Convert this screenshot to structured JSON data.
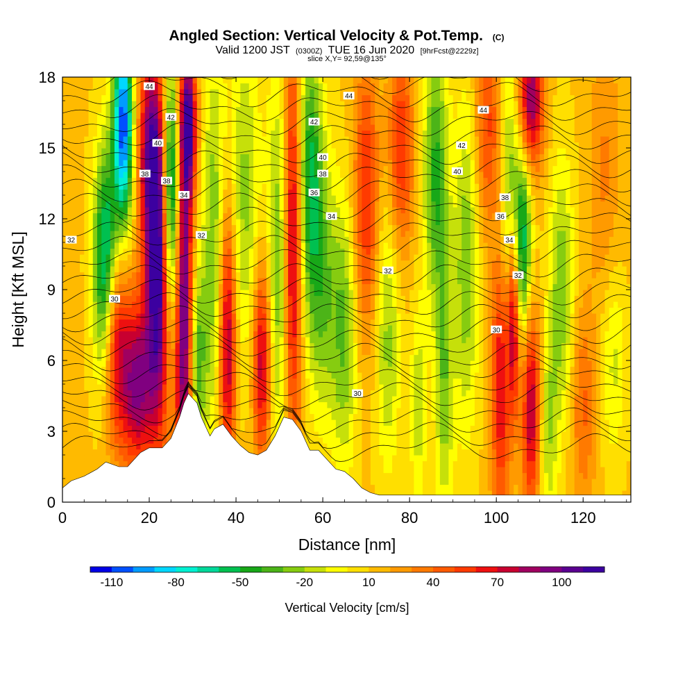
{
  "chart_data": {
    "type": "heatmap",
    "title": {
      "main": "Angled Section: Vertical Velocity & Pot.Temp.",
      "copyright": "(C)",
      "valid_prefix": "Valid 1200 JST",
      "utc": "(0300Z)",
      "valid_date": "TUE 16 Jun 2020",
      "forecast": "[9hrFcst@2229z]",
      "slice": "slice X,Y= 92,59@135°"
    },
    "xlabel": "Distance [nm]",
    "ylabel": "Height [Kft MSL]",
    "xlim": [
      0,
      131
    ],
    "ylim": [
      0,
      18
    ],
    "x_ticks": [
      0,
      20,
      40,
      60,
      80,
      100,
      120
    ],
    "y_ticks": [
      0,
      3,
      6,
      9,
      12,
      15,
      18
    ],
    "colorbar": {
      "label": "Vertical Velocity [cm/s]",
      "min": -120,
      "max": 120,
      "step": 10,
      "tick_values": [
        -110,
        -80,
        -50,
        -20,
        10,
        40,
        70,
        100
      ],
      "tick_labels": [
        "-110",
        "-80",
        "-50",
        "-20",
        "10",
        "40",
        "70",
        "100"
      ],
      "colors": [
        "#0000e6",
        "#0050ff",
        "#009bff",
        "#00d7ff",
        "#00f0d2",
        "#00d89a",
        "#00c050",
        "#18a818",
        "#4cb418",
        "#86cc10",
        "#c6e00a",
        "#ffff00",
        "#ffdf00",
        "#ffba00",
        "#ff9a00",
        "#ff7a00",
        "#ff5a00",
        "#ff3a00",
        "#ee1010",
        "#c80030",
        "#a00060",
        "#800080",
        "#5a0090",
        "#3c00a0"
      ]
    },
    "terrain_kft": [
      [
        0,
        0.6
      ],
      [
        2,
        0.9
      ],
      [
        5,
        1.1
      ],
      [
        8,
        1.4
      ],
      [
        10,
        1.7
      ],
      [
        13,
        1.5
      ],
      [
        15,
        1.5
      ],
      [
        18,
        2.1
      ],
      [
        20,
        2.3
      ],
      [
        23,
        2.3
      ],
      [
        25,
        2.7
      ],
      [
        27,
        3.6
      ],
      [
        28,
        4.2
      ],
      [
        29,
        4.6
      ],
      [
        31,
        4.2
      ],
      [
        32,
        3.6
      ],
      [
        33,
        3.2
      ],
      [
        34,
        2.8
      ],
      [
        35,
        3.1
      ],
      [
        37,
        3.3
      ],
      [
        39,
        2.8
      ],
      [
        41,
        2.4
      ],
      [
        43,
        2.1
      ],
      [
        45,
        2.0
      ],
      [
        47,
        2.2
      ],
      [
        49,
        2.8
      ],
      [
        51,
        3.6
      ],
      [
        53,
        3.5
      ],
      [
        55,
        3.0
      ],
      [
        57,
        2.2
      ],
      [
        59,
        2.2
      ],
      [
        61,
        1.8
      ],
      [
        63,
        1.4
      ],
      [
        65,
        1.3
      ],
      [
        67,
        1.0
      ],
      [
        69,
        0.6
      ],
      [
        71,
        0.4
      ],
      [
        73,
        0.3
      ],
      [
        131,
        0.3
      ]
    ],
    "velocity_features": [
      {
        "x": 10,
        "z": 10,
        "sx": 2,
        "sz": 3.5,
        "v": -90
      },
      {
        "x": 14,
        "z": 16,
        "sx": 1.6,
        "sz": 3,
        "v": -120
      },
      {
        "x": 12,
        "z": 7,
        "sx": 2,
        "sz": 3,
        "v": 70
      },
      {
        "x": 17,
        "z": 5,
        "sx": 2.5,
        "sz": 2.5,
        "v": 80
      },
      {
        "x": 22,
        "z": 10,
        "sx": 2,
        "sz": 5,
        "v": 115
      },
      {
        "x": 20,
        "z": 15,
        "sx": 2,
        "sz": 3,
        "v": 60
      },
      {
        "x": 25,
        "z": 13,
        "sx": 1.5,
        "sz": 4,
        "v": -100
      },
      {
        "x": 28,
        "z": 8,
        "sx": 1.5,
        "sz": 6,
        "v": 100
      },
      {
        "x": 29,
        "z": 16,
        "sx": 1.3,
        "sz": 2,
        "v": 90
      },
      {
        "x": 31,
        "z": 6,
        "sx": 1.5,
        "sz": 3,
        "v": -50
      },
      {
        "x": 35,
        "z": 11,
        "sx": 2,
        "sz": 6,
        "v": -40
      },
      {
        "x": 38,
        "z": 7,
        "sx": 1.4,
        "sz": 4,
        "v": 80
      },
      {
        "x": 42,
        "z": 13,
        "sx": 2.5,
        "sz": 5,
        "v": -35
      },
      {
        "x": 46,
        "z": 6,
        "sx": 1.5,
        "sz": 3,
        "v": 70
      },
      {
        "x": 50,
        "z": 10,
        "sx": 2,
        "sz": 6,
        "v": -45
      },
      {
        "x": 53,
        "z": 11,
        "sx": 1.5,
        "sz": 6,
        "v": 80
      },
      {
        "x": 57,
        "z": 14,
        "sx": 2,
        "sz": 4,
        "v": -60
      },
      {
        "x": 60,
        "z": 9,
        "sx": 2.5,
        "sz": 4,
        "v": -40
      },
      {
        "x": 65,
        "z": 7,
        "sx": 2,
        "sz": 4,
        "v": -40
      },
      {
        "x": 70,
        "z": 13,
        "sx": 2,
        "sz": 4,
        "v": 50
      },
      {
        "x": 75,
        "z": 7,
        "sx": 2,
        "sz": 4,
        "v": -35
      },
      {
        "x": 78,
        "z": 15,
        "sx": 2,
        "sz": 3,
        "v": 50
      },
      {
        "x": 82,
        "z": 4,
        "sx": 1.3,
        "sz": 3,
        "v": -30
      },
      {
        "x": 86,
        "z": 14,
        "sx": 2,
        "sz": 4,
        "v": -55
      },
      {
        "x": 88,
        "z": 5,
        "sx": 1.5,
        "sz": 4,
        "v": -40
      },
      {
        "x": 93,
        "z": 10,
        "sx": 2,
        "sz": 5,
        "v": -40
      },
      {
        "x": 98,
        "z": 16,
        "sx": 2,
        "sz": 3,
        "v": 40
      },
      {
        "x": 101,
        "z": 5,
        "sx": 1.5,
        "sz": 4,
        "v": 60
      },
      {
        "x": 103,
        "z": 13,
        "sx": 1.5,
        "sz": 4,
        "v": -40
      },
      {
        "x": 104,
        "z": 8,
        "sx": 1,
        "sz": 3,
        "v": 80
      },
      {
        "x": 106,
        "z": 11,
        "sx": 1.5,
        "sz": 3,
        "v": -70
      },
      {
        "x": 108,
        "z": 17,
        "sx": 2,
        "sz": 2,
        "v": 80
      },
      {
        "x": 108,
        "z": 4,
        "sx": 1.5,
        "sz": 3,
        "v": 70
      },
      {
        "x": 112,
        "z": 3,
        "sx": 1.5,
        "sz": 3,
        "v": -30
      },
      {
        "x": 115,
        "z": 9,
        "sx": 2,
        "sz": 4,
        "v": -40
      },
      {
        "x": 120,
        "z": 4,
        "sx": 2,
        "sz": 3,
        "v": 30
      },
      {
        "x": 125,
        "z": 14,
        "sx": 2.5,
        "sz": 4,
        "v": 20
      },
      {
        "x": 127,
        "z": 6,
        "sx": 2,
        "sz": 3,
        "v": -25
      }
    ],
    "isentrope_labels": [
      {
        "text": "44",
        "x": 20,
        "z": 17.6
      },
      {
        "text": "42",
        "x": 25,
        "z": 16.3
      },
      {
        "text": "40",
        "x": 22,
        "z": 15.2
      },
      {
        "text": "38",
        "x": 19,
        "z": 13.9
      },
      {
        "text": "38",
        "x": 24,
        "z": 13.6
      },
      {
        "text": "34",
        "x": 28,
        "z": 13.0
      },
      {
        "text": "32",
        "x": 32,
        "z": 11.3
      },
      {
        "text": "32",
        "x": 2,
        "z": 11.1
      },
      {
        "text": "30",
        "x": 12,
        "z": 8.6
      },
      {
        "text": "44",
        "x": 66,
        "z": 17.2
      },
      {
        "text": "42",
        "x": 58,
        "z": 16.1
      },
      {
        "text": "40",
        "x": 60,
        "z": 14.6
      },
      {
        "text": "38",
        "x": 60,
        "z": 13.9
      },
      {
        "text": "36",
        "x": 58,
        "z": 13.1
      },
      {
        "text": "34",
        "x": 62,
        "z": 12.1
      },
      {
        "text": "32",
        "x": 75,
        "z": 9.8
      },
      {
        "text": "30",
        "x": 68,
        "z": 4.6
      },
      {
        "text": "44",
        "x": 97,
        "z": 16.6
      },
      {
        "text": "42",
        "x": 92,
        "z": 15.1
      },
      {
        "text": "40",
        "x": 91,
        "z": 14.0
      },
      {
        "text": "38",
        "x": 102,
        "z": 12.9
      },
      {
        "text": "36",
        "x": 101,
        "z": 12.1
      },
      {
        "text": "34",
        "x": 103,
        "z": 11.1
      },
      {
        "text": "32",
        "x": 105,
        "z": 9.6
      },
      {
        "text": "30",
        "x": 100,
        "z": 7.3
      }
    ]
  }
}
